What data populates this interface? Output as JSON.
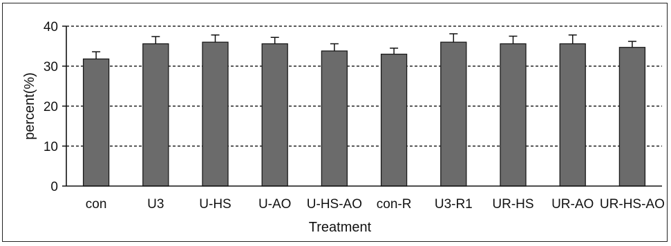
{
  "chart_data": {
    "type": "bar",
    "title": "",
    "xlabel": "Treatment",
    "ylabel": "percent(%)",
    "ylim": [
      0,
      40
    ],
    "yticks": [
      0,
      10,
      20,
      30,
      40
    ],
    "grid": "horizontal dashed",
    "categories": [
      "con",
      "U3",
      "U-HS",
      "U-AO",
      "U-HS-AO",
      "con-R",
      "U3-R1",
      "UR-HS",
      "UR-AO",
      "UR-HS-AO"
    ],
    "values": [
      31.8,
      35.6,
      36.0,
      35.6,
      33.8,
      33.0,
      36.0,
      35.6,
      35.6,
      34.7
    ],
    "errors": [
      1.8,
      1.8,
      1.8,
      1.6,
      1.8,
      1.5,
      2.1,
      1.9,
      2.2,
      1.5
    ],
    "colors": {
      "bar_fill": "#6b6b6b",
      "bar_stroke": "#1a1a1a",
      "grid": "#222222",
      "text": "#111111"
    }
  }
}
